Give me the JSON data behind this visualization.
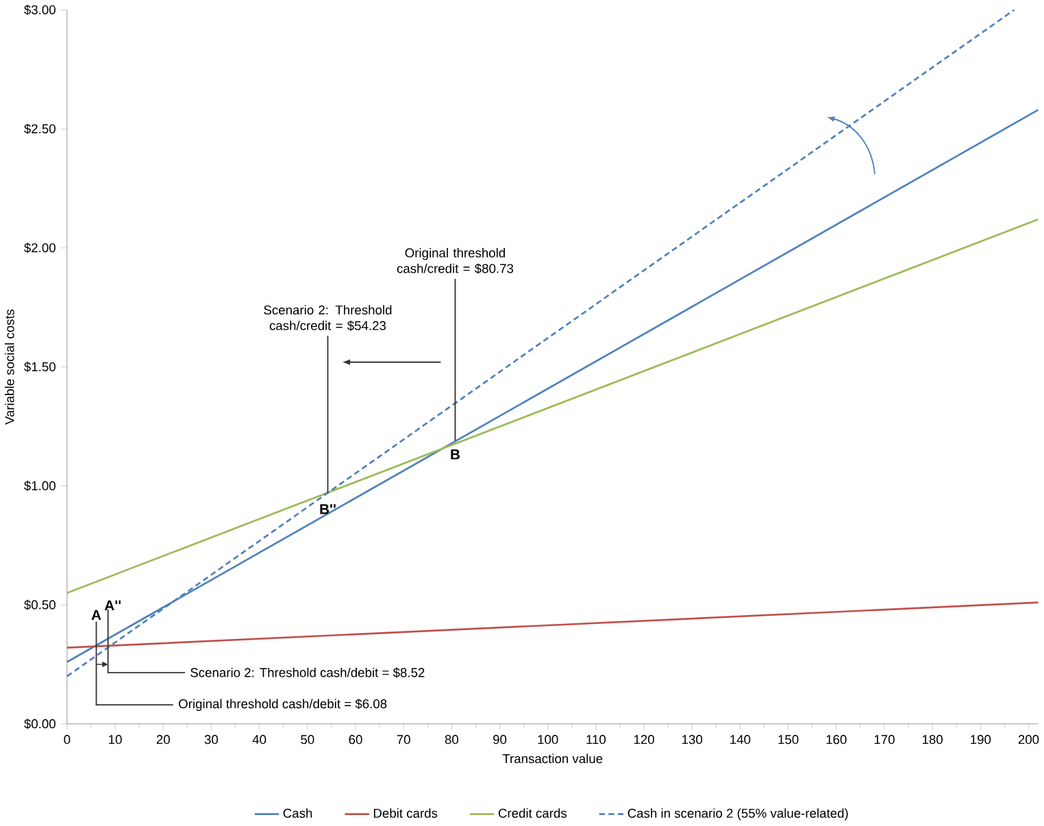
{
  "chart_data": {
    "type": "line",
    "xlabel": "Transaction value",
    "ylabel": "Variable social costs",
    "xlim": [
      0,
      202
    ],
    "xticks": [
      0,
      10,
      20,
      30,
      40,
      50,
      60,
      70,
      80,
      90,
      100,
      110,
      120,
      130,
      140,
      150,
      160,
      170,
      180,
      190,
      200
    ],
    "ylim": [
      0,
      3
    ],
    "yticks": [
      {
        "value": 0,
        "label": "$0.00"
      },
      {
        "value": 0.5,
        "label": "$0.50"
      },
      {
        "value": 1,
        "label": "$1.00"
      },
      {
        "value": 1.5,
        "label": "$1.50"
      },
      {
        "value": 2,
        "label": "$2.00"
      },
      {
        "value": 2.5,
        "label": "$2.50"
      },
      {
        "value": 3,
        "label": "$3.00"
      }
    ],
    "grid": false,
    "legend": "bottom",
    "marker": "none",
    "series": [
      {
        "name": "Cash",
        "color": "#4f81bd",
        "x": [
          0,
          202
        ],
        "values": [
          0.26,
          2.58
        ]
      },
      {
        "name": "Debit cards",
        "color": "#c0504d",
        "x": [
          0,
          202
        ],
        "values": [
          0.32,
          0.51
        ]
      },
      {
        "name": "Credit cards",
        "color": "#9bbb59",
        "x": [
          0,
          202
        ],
        "values": [
          0.55,
          2.12
        ]
      },
      {
        "name": "Cash in scenario 2 (55% value-related)",
        "color": "#4f81bd",
        "line_style": "dashed",
        "x": [
          0,
          197
        ],
        "values": [
          0.2,
          3.0
        ]
      }
    ],
    "annotations": [
      {
        "text": "A",
        "x": 6.08,
        "y": 0.33
      },
      {
        "text": "A''",
        "x": 8.52,
        "y": 0.32
      },
      {
        "text": "B",
        "x": 80.73,
        "y": 1.19
      },
      {
        "text": "B''",
        "x": 54.23,
        "y": 0.97
      },
      {
        "text": "Original threshold cash/debit = $6.08",
        "x": 6.08,
        "y": 0.33
      },
      {
        "text": "Scenario 2: Threshold cash/debit = $8.52",
        "x": 8.52,
        "y": 0.33
      },
      {
        "text": "Original threshold cash/credit = $80.73",
        "x": 80.73,
        "y": 1.19
      },
      {
        "text": "Scenario 2: Threshold cash/credit = $54.23",
        "x": 54.23,
        "y": 0.97
      }
    ]
  }
}
